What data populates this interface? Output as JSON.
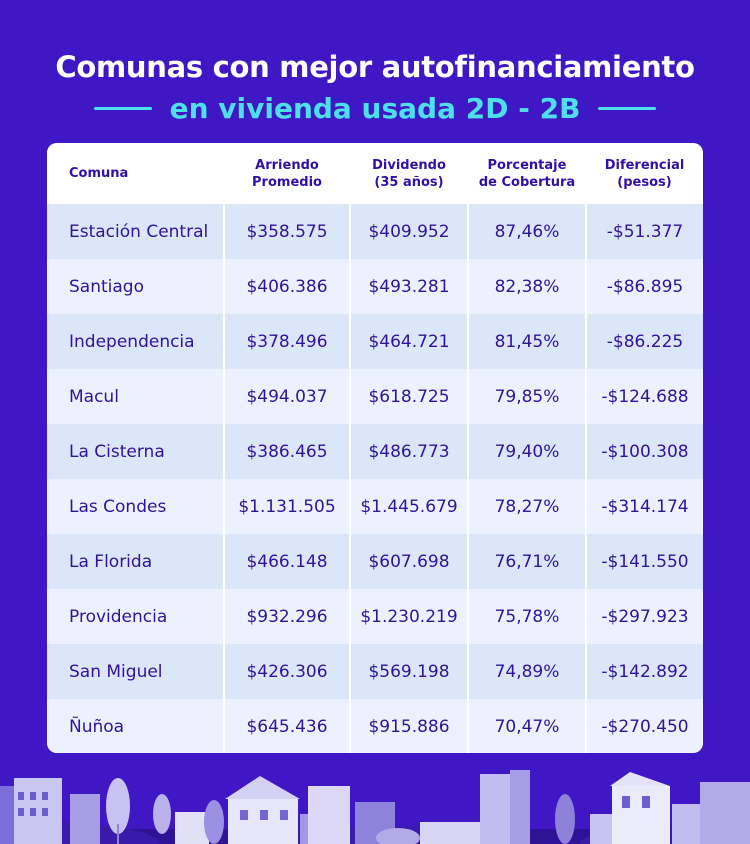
{
  "title": {
    "line1": "Comunas con mejor autofinanciamiento",
    "line2": "en vivienda usada 2D - 2B"
  },
  "table": {
    "headers": [
      {
        "l1": "Comuna",
        "l2": ""
      },
      {
        "l1": "Arriendo",
        "l2": "Promedio"
      },
      {
        "l1": "Dividendo",
        "l2": "(35 años)"
      },
      {
        "l1": "Porcentaje",
        "l2": "de Cobertura"
      },
      {
        "l1": "Diferencial",
        "l2": "(pesos)"
      }
    ],
    "rows": [
      [
        "Estación Central",
        "$358.575",
        "$409.952",
        "87,46%",
        "-$51.377"
      ],
      [
        "Santiago",
        "$406.386",
        "$493.281",
        "82,38%",
        "-$86.895"
      ],
      [
        "Independencia",
        "$378.496",
        "$464.721",
        "81,45%",
        "-$86.225"
      ],
      [
        "Macul",
        "$494.037",
        "$618.725",
        "79,85%",
        "-$124.688"
      ],
      [
        "La Cisterna",
        "$386.465",
        "$486.773",
        "79,40%",
        "-$100.308"
      ],
      [
        "Las Condes",
        "$1.131.505",
        "$1.445.679",
        "78,27%",
        "-$314.174"
      ],
      [
        "La Florida",
        "$466.148",
        "$607.698",
        "76,71%",
        "-$141.550"
      ],
      [
        "Providencia",
        "$932.296",
        "$1.230.219",
        "75,78%",
        "-$297.923"
      ],
      [
        "San Miguel",
        "$426.306",
        "$569.198",
        "74,89%",
        "-$142.892"
      ],
      [
        "Ñuñoa",
        "$645.436",
        "$915.886",
        "70,47%",
        "-$270.450"
      ]
    ]
  },
  "decoration": {
    "illustration": "city-skyline-illustration",
    "colors": {
      "background": "#3f17c4",
      "accent": "#4de0ea",
      "text": "#2f1399"
    }
  }
}
